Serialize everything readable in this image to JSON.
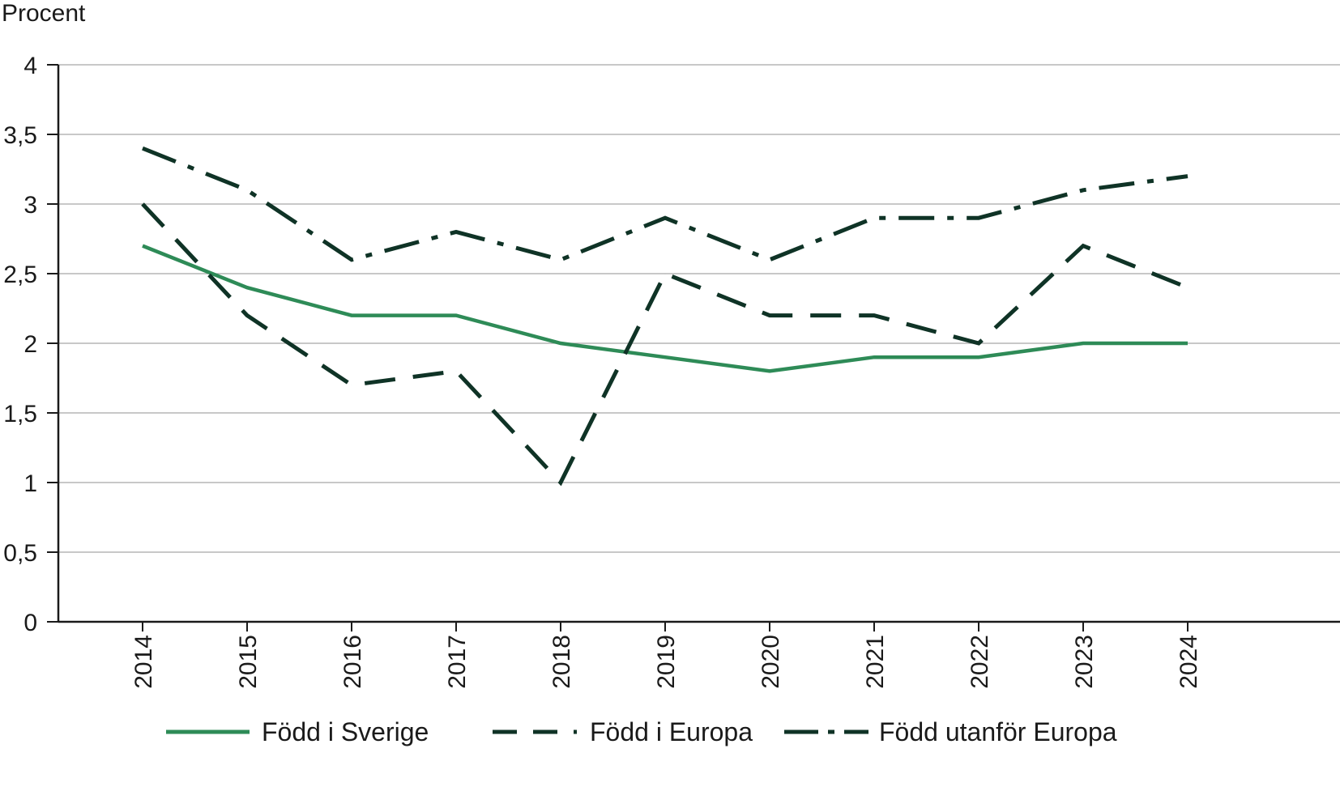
{
  "chart_data": {
    "type": "line",
    "ylabel": "Procent",
    "xlabel": "",
    "title": "",
    "ylim": [
      0,
      4
    ],
    "ytick_values": [
      0,
      0.5,
      1,
      1.5,
      2,
      2.5,
      3,
      3.5,
      4
    ],
    "ytick_labels": [
      "0",
      "0,5",
      "1",
      "1,5",
      "2",
      "2,5",
      "3",
      "3,5",
      "4"
    ],
    "categories": [
      "2014",
      "2015",
      "2016",
      "2017",
      "2018",
      "2019",
      "2020",
      "2021",
      "2022",
      "2023",
      "2024"
    ],
    "grid": true,
    "legend_position": "bottom",
    "series": [
      {
        "name": "Född i Sverige",
        "values": [
          2.7,
          2.4,
          2.2,
          2.2,
          2.0,
          1.9,
          1.8,
          1.9,
          1.9,
          2.0,
          2.0
        ],
        "color": "#2e8b57",
        "style": "solid"
      },
      {
        "name": "Född i Europa",
        "values": [
          3.0,
          2.2,
          1.7,
          1.8,
          1.0,
          2.5,
          2.2,
          2.2,
          2.0,
          2.7,
          2.4
        ],
        "color": "#0f3326",
        "style": "dashed"
      },
      {
        "name": "Född utanför Europa",
        "values": [
          3.4,
          3.1,
          2.6,
          2.8,
          2.6,
          2.9,
          2.6,
          2.9,
          2.9,
          3.1,
          3.2
        ],
        "color": "#0f3326",
        "style": "dashdot"
      }
    ]
  }
}
